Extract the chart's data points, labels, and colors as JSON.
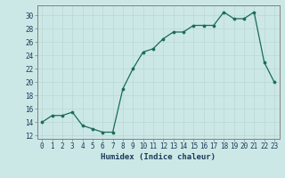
{
  "x": [
    0,
    1,
    2,
    3,
    4,
    5,
    6,
    7,
    8,
    9,
    10,
    11,
    12,
    13,
    14,
    15,
    16,
    17,
    18,
    19,
    20,
    21,
    22,
    23
  ],
  "y": [
    14,
    15,
    15,
    15.5,
    13.5,
    13,
    12.5,
    12.5,
    19,
    22,
    24.5,
    25,
    26.5,
    27.5,
    27.5,
    28.5,
    28.5,
    28.5,
    30.5,
    29.5,
    29.5,
    30.5,
    23,
    20
  ],
  "xlabel": "Humidex (Indice chaleur)",
  "xlim": [
    -0.5,
    23.5
  ],
  "ylim": [
    11.5,
    31.5
  ],
  "yticks": [
    12,
    14,
    16,
    18,
    20,
    22,
    24,
    26,
    28,
    30
  ],
  "xticks": [
    0,
    1,
    2,
    3,
    4,
    5,
    6,
    7,
    8,
    9,
    10,
    11,
    12,
    13,
    14,
    15,
    16,
    17,
    18,
    19,
    20,
    21,
    22,
    23
  ],
  "line_color": "#1a6b5a",
  "marker_color": "#1a6b5a",
  "bg_color": "#cce8e6",
  "grid_color": "#b8d8d6",
  "tick_label_fontsize": 5.5,
  "xlabel_fontsize": 6.5
}
